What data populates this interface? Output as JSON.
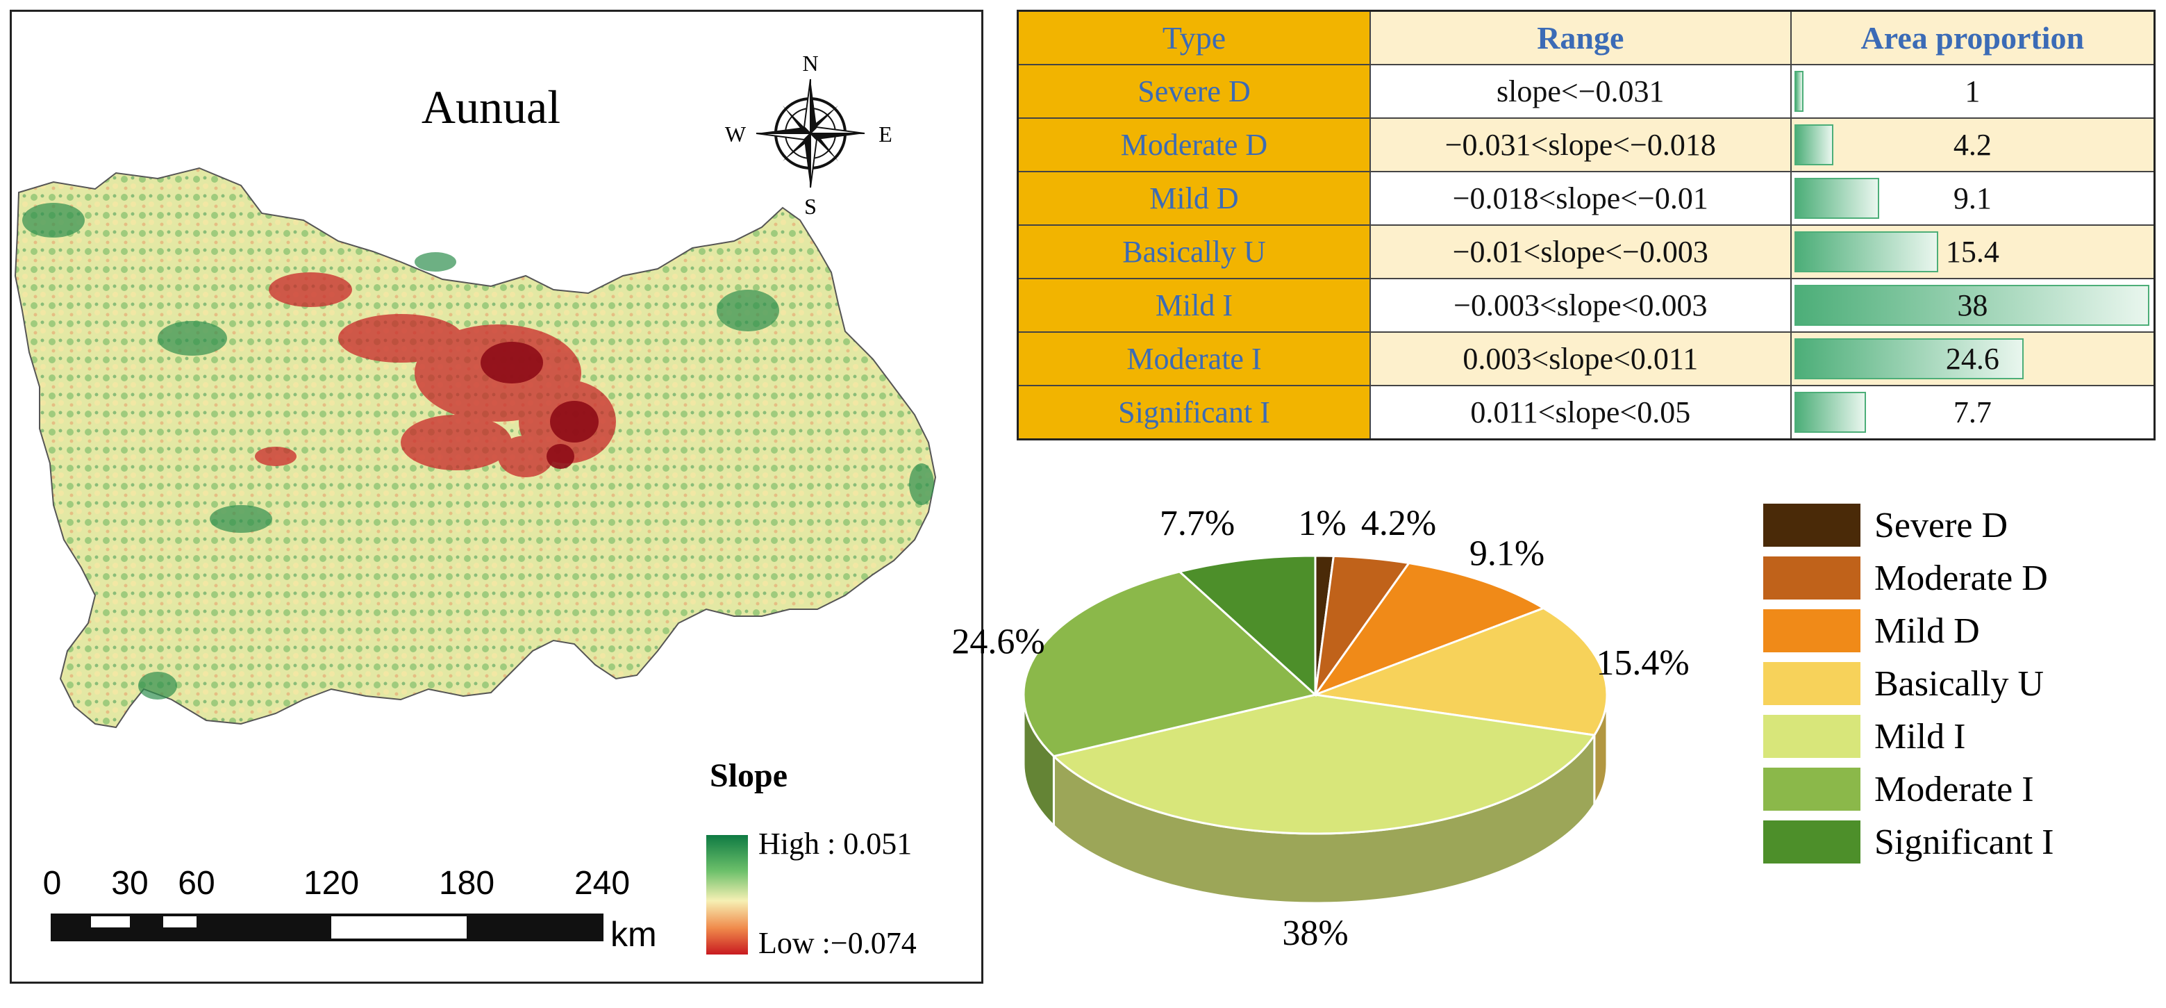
{
  "map": {
    "title": "Aunual",
    "compass": {
      "n": "N",
      "s": "S",
      "e": "E",
      "w": "W"
    },
    "legend": {
      "title": "Slope",
      "high_label": "High : 0.051",
      "low_label": "Low :−0.074",
      "colors": [
        "#0e7a43",
        "#6cc06a",
        "#f6f0b4",
        "#f08a4b",
        "#c81a20"
      ]
    },
    "scale": {
      "ticks": [
        "0",
        "30",
        "60",
        "120",
        "180",
        "240"
      ],
      "unit": "km"
    }
  },
  "table": {
    "headers": {
      "type": "Type",
      "range": "Range",
      "area": "Area proportion"
    },
    "rows": [
      {
        "type": "Severe D",
        "range": "slope<−0.031",
        "area": "1",
        "value": 1
      },
      {
        "type": "Moderate D",
        "range": "−0.031<slope<−0.018",
        "area": "4.2",
        "value": 4.2
      },
      {
        "type": "Mild D",
        "range": "−0.018<slope<−0.01",
        "area": "9.1",
        "value": 9.1
      },
      {
        "type": "Basically U",
        "range": "−0.01<slope<−0.003",
        "area": "15.4",
        "value": 15.4
      },
      {
        "type": "Mild I",
        "range": "−0.003<slope<0.003",
        "area": "38",
        "value": 38
      },
      {
        "type": "Moderate I",
        "range": "0.003<slope<0.011",
        "area": "24.6",
        "value": 24.6
      },
      {
        "type": "Significant I",
        "range": "0.011<slope<0.05",
        "area": "7.7",
        "value": 7.7
      }
    ]
  },
  "chart_data": {
    "type": "pie",
    "categories": [
      "Severe D",
      "Moderate D",
      "Mild D",
      "Basically U",
      "Mild I",
      "Moderate I",
      "Significant I"
    ],
    "values": [
      1,
      4.2,
      9.1,
      15.4,
      38,
      24.6,
      7.7
    ],
    "labels": [
      "1%",
      "4.2%",
      "9.1%",
      "15.4%",
      "38%",
      "24.6%",
      "7.7%"
    ],
    "colors": [
      "#4a2a08",
      "#c0621a",
      "#f08a18",
      "#f7d25a",
      "#d8e67a",
      "#8bb84a",
      "#4d8f2a"
    ],
    "legend": "right"
  }
}
